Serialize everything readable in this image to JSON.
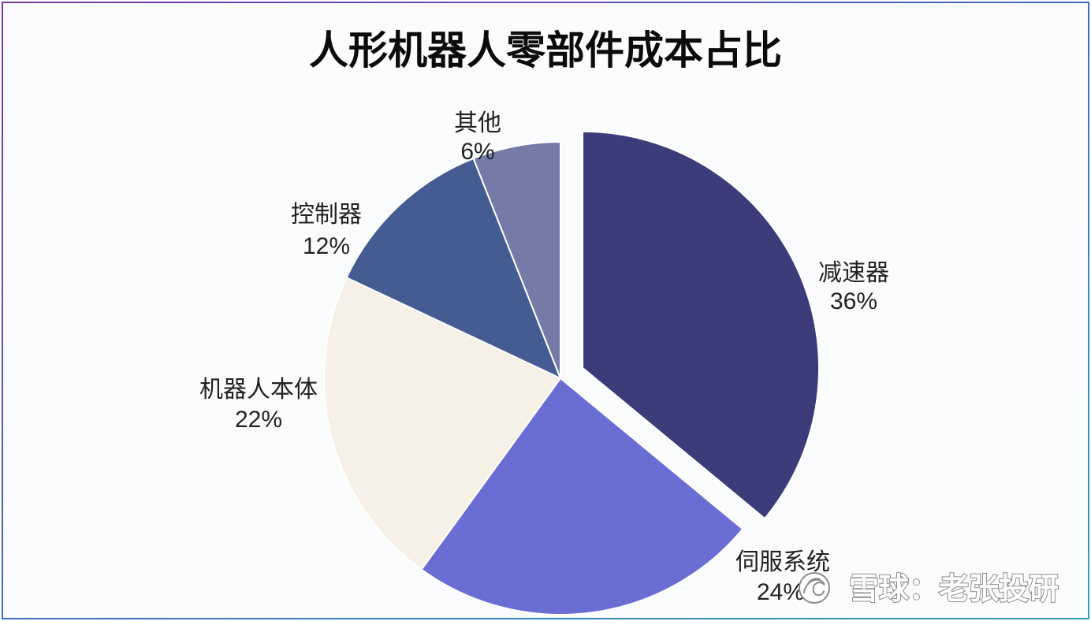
{
  "chart_data": {
    "type": "pie",
    "title": "人形机器人零部件成本占比",
    "categories": [
      "减速器",
      "伺服系统",
      "机器人本体",
      "控制器",
      "其他"
    ],
    "values": [
      36,
      24,
      22,
      12,
      6
    ],
    "data_labels": [
      "36%",
      "24%",
      "22%",
      "12%",
      "6%"
    ],
    "colors": [
      "#3b3d7b",
      "#6a6ed2",
      "#f6f1e7",
      "#445c91",
      "#757ba6"
    ],
    "exploded_slice": "减速器"
  },
  "watermark": {
    "text": "雪球：老张投研",
    "icon": "snowball-logo-icon"
  },
  "frame": {
    "background": "#fbfcfe",
    "border_gradient": [
      "#7b3a98",
      "#3f6cc2",
      "#2aa3b8"
    ]
  }
}
